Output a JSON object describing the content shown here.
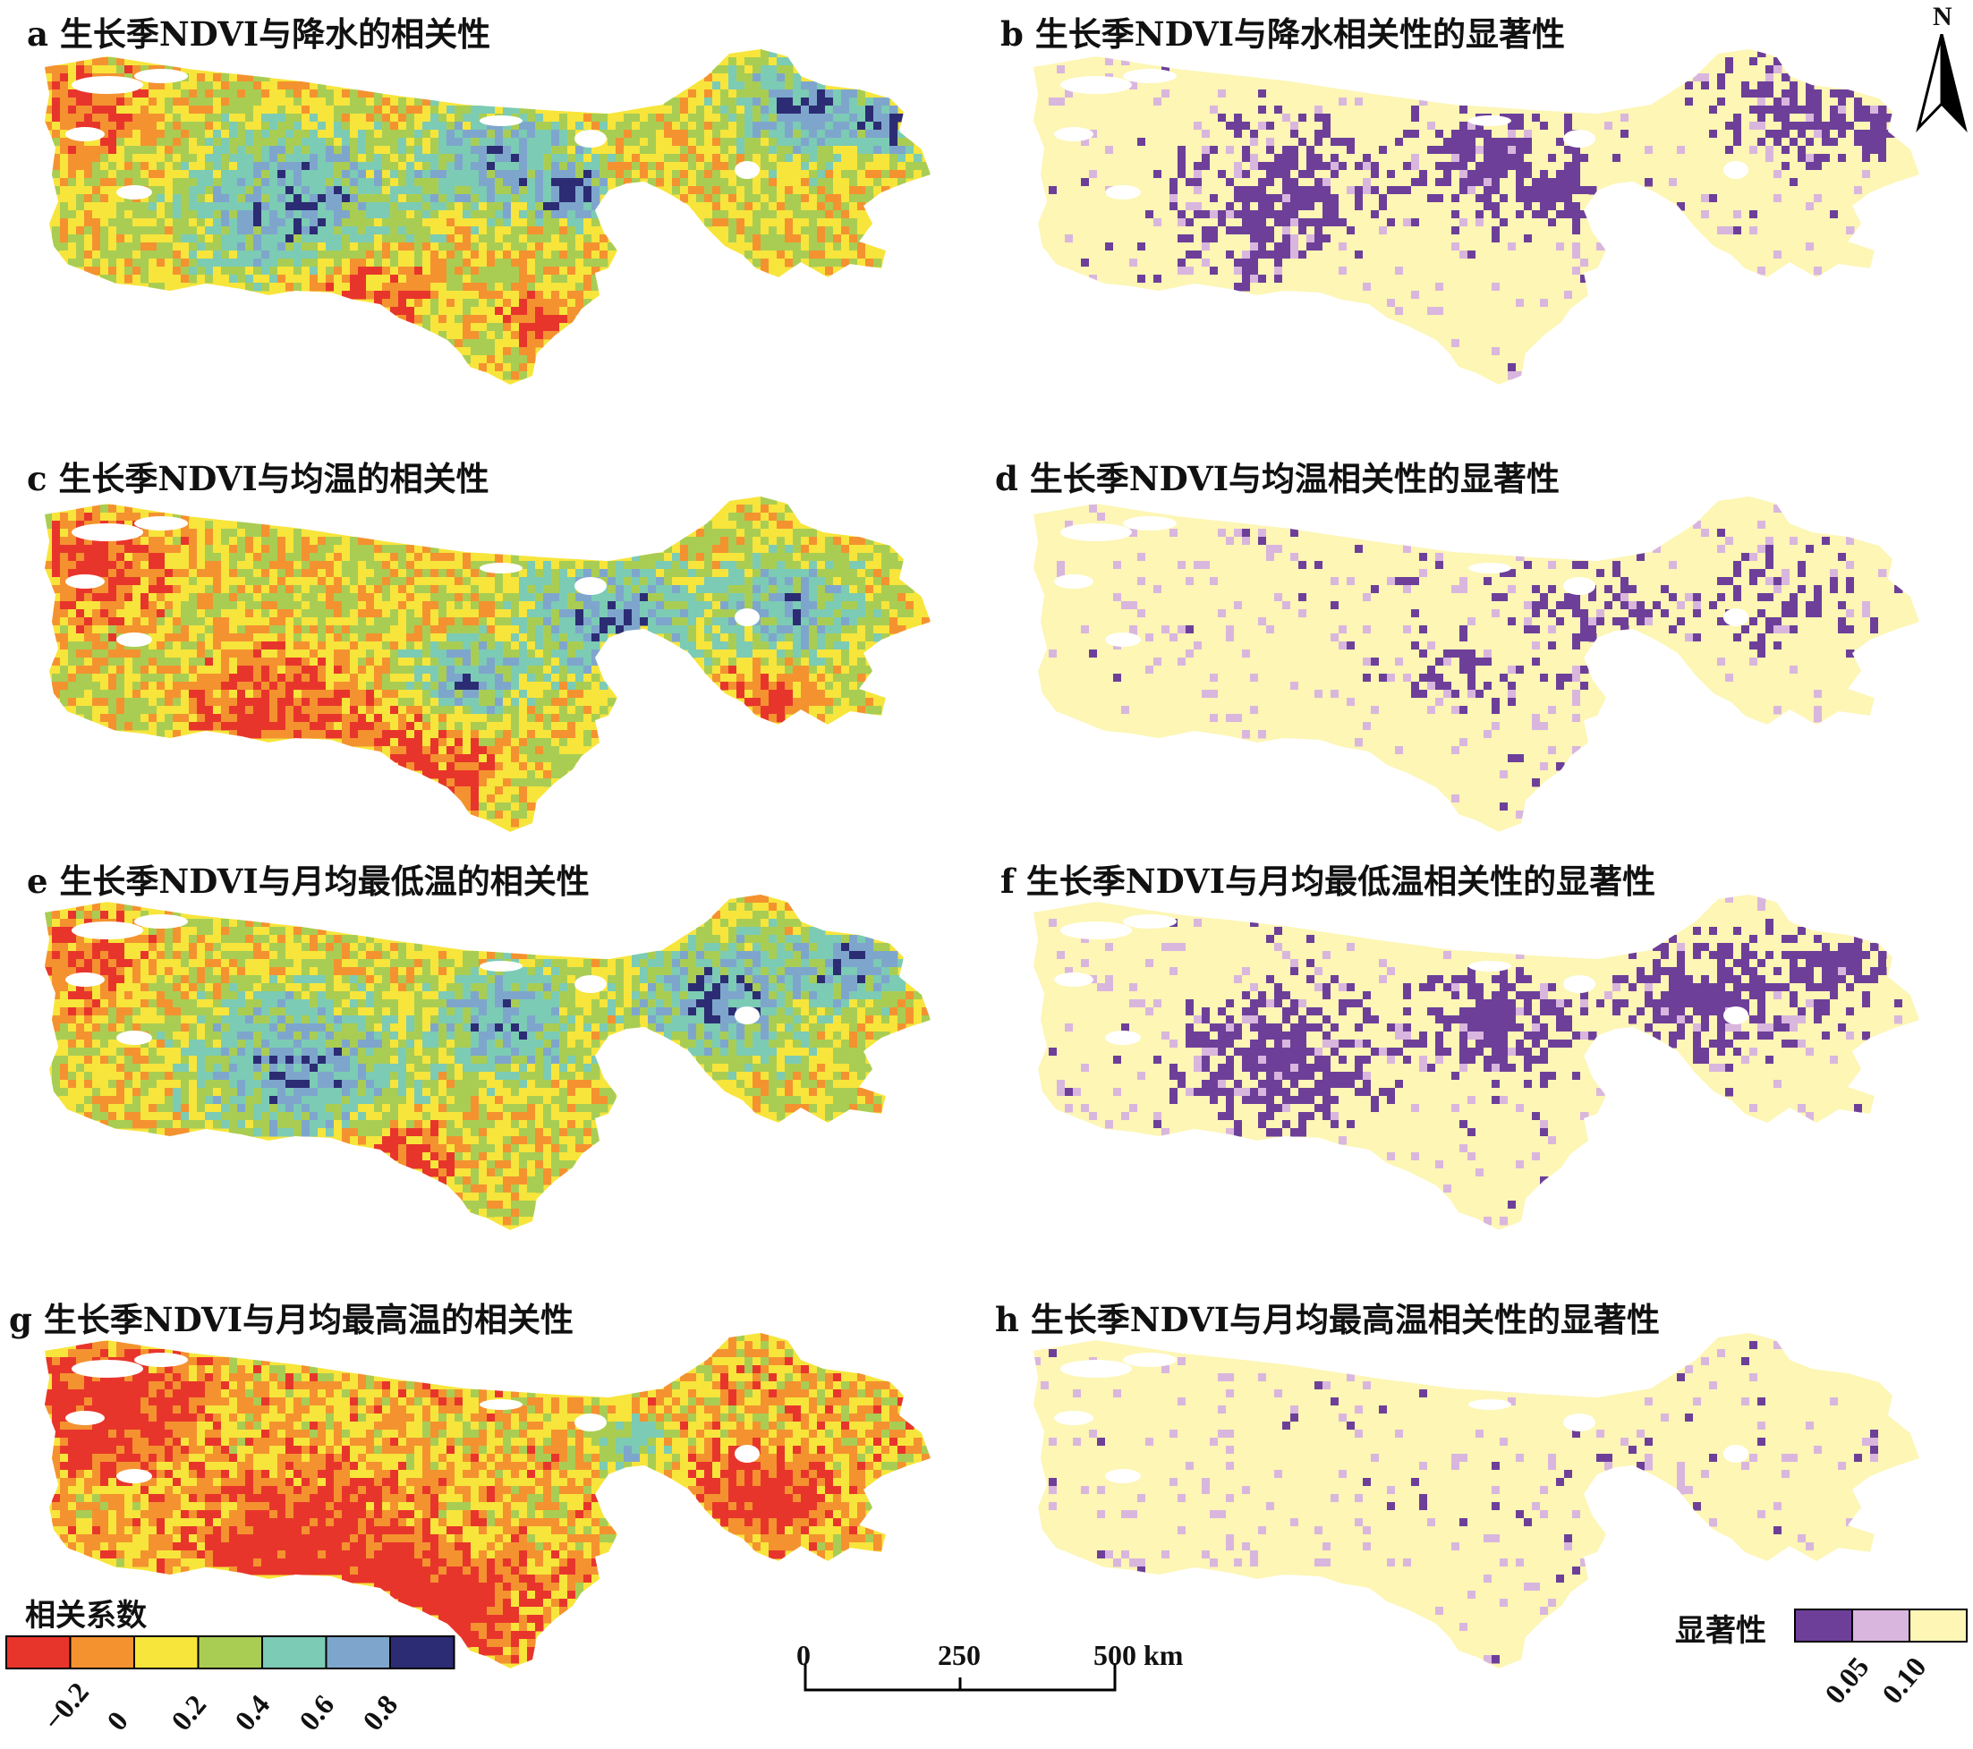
{
  "panels": [
    {
      "id": "a",
      "title": "a 生长季NDVI与降水的相关性",
      "kind": "corr",
      "theme": "precip"
    },
    {
      "id": "b",
      "title": "b 生长季NDVI与降水相关性的显著性",
      "kind": "sig",
      "theme": "precip"
    },
    {
      "id": "c",
      "title": "c 生长季NDVI与均温的相关性",
      "kind": "corr",
      "theme": "mean"
    },
    {
      "id": "d",
      "title": "d 生长季NDVI与均温相关性的显著性",
      "kind": "sig",
      "theme": "mean"
    },
    {
      "id": "e",
      "title": "e 生长季NDVI与月均最低温的相关性",
      "kind": "corr",
      "theme": "min"
    },
    {
      "id": "f",
      "title": "f 生长季NDVI与月均最低温相关性的显著性",
      "kind": "sig",
      "theme": "min"
    },
    {
      "id": "g",
      "title": "g 生长季NDVI与月均最高温的相关性",
      "kind": "corr",
      "theme": "max"
    },
    {
      "id": "h",
      "title": "h 生长季NDVI与月均最高温相关性的显著性",
      "kind": "sig",
      "theme": "max"
    }
  ],
  "corr_legend": {
    "title": "相关系数",
    "colors": [
      "#e8352b",
      "#f49230",
      "#f7e53b",
      "#a9cd53",
      "#7ccbb4",
      "#7ea6cc",
      "#2b2c73"
    ],
    "ticks": [
      "−0.2",
      "0",
      "0.2",
      "0.4",
      "0.6",
      "0.8"
    ]
  },
  "sig_legend": {
    "title": "显著性",
    "colors": [
      "#6d3f99",
      "#d9b6de",
      "#fdf6b5"
    ],
    "ticks": [
      "0.05",
      "0.10"
    ]
  },
  "scale_bar": {
    "labels": [
      "0",
      "250",
      "500 km"
    ]
  },
  "north_arrow": {
    "label": "N",
    "icon": "north-arrow-icon"
  },
  "colors": {
    "nodata": "#ffffff",
    "sig_strong": "#6d3f99",
    "sig_none": "#fdf6b5"
  }
}
